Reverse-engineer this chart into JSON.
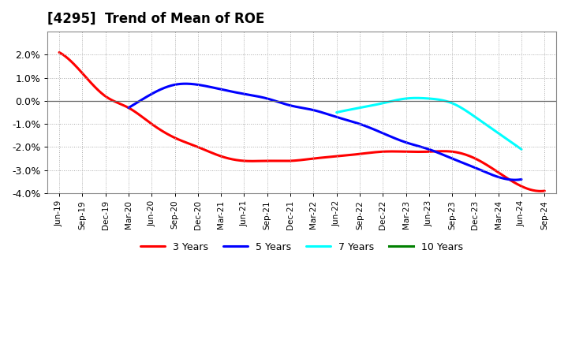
{
  "title": "[4295]  Trend of Mean of ROE",
  "ylim": [
    -0.04,
    0.03
  ],
  "yticks": [
    -0.04,
    -0.03,
    -0.02,
    -0.01,
    0.0,
    0.01,
    0.02
  ],
  "background_color": "#ffffff",
  "grid_color": "#aaaaaa",
  "legend": [
    "3 Years",
    "5 Years",
    "7 Years",
    "10 Years"
  ],
  "line_colors": [
    "#ff0000",
    "#0000ff",
    "#00ffff",
    "#008000"
  ],
  "x_labels": [
    "Jun-19",
    "Sep-19",
    "Dec-19",
    "Mar-20",
    "Jun-20",
    "Sep-20",
    "Dec-20",
    "Mar-21",
    "Jun-21",
    "Sep-21",
    "Dec-21",
    "Mar-22",
    "Jun-22",
    "Sep-22",
    "Dec-22",
    "Mar-23",
    "Jun-23",
    "Sep-23",
    "Dec-23",
    "Mar-24",
    "Jun-24",
    "Sep-24"
  ],
  "series_3yr": [
    0.021,
    0.012,
    0.002,
    -0.003,
    -0.01,
    -0.016,
    -0.02,
    -0.024,
    -0.026,
    -0.026,
    -0.026,
    -0.025,
    -0.024,
    -0.023,
    -0.022,
    -0.022,
    -0.022,
    -0.022,
    -0.025,
    -0.031,
    -0.037,
    -0.039
  ],
  "series_5yr": [
    null,
    null,
    null,
    -0.003,
    0.003,
    0.007,
    0.007,
    0.005,
    0.003,
    0.001,
    -0.002,
    -0.004,
    -0.007,
    -0.01,
    -0.014,
    -0.018,
    -0.021,
    -0.025,
    -0.029,
    -0.033,
    -0.034,
    null
  ],
  "series_7yr": [
    null,
    null,
    null,
    null,
    null,
    null,
    null,
    null,
    null,
    null,
    null,
    null,
    -0.005,
    -0.003,
    -0.001,
    0.001,
    0.001,
    -0.001,
    -0.007,
    -0.014,
    -0.021,
    null
  ],
  "series_10yr": [
    null,
    null,
    null,
    null,
    null,
    null,
    null,
    null,
    null,
    null,
    null,
    null,
    null,
    null,
    null,
    null,
    null,
    null,
    null,
    null,
    null,
    null
  ]
}
